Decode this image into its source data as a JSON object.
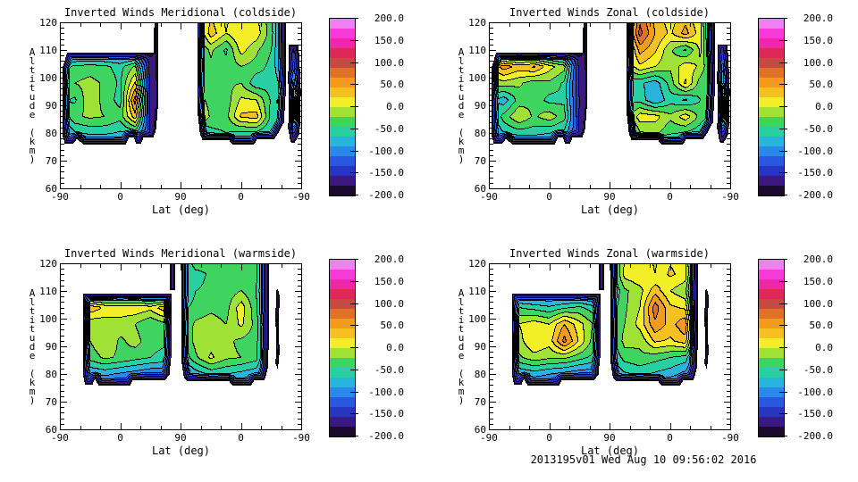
{
  "page": {
    "background": "#ffffff"
  },
  "footer": {
    "text": "2013195v01 Wed Aug 10 09:56:02 2016"
  },
  "axes": {
    "x_label": "Lat (deg)",
    "y_label": "Altitude (km)",
    "x_major_ticks": [
      {
        "u": 0.0,
        "label": "-90"
      },
      {
        "u": 0.25,
        "label": "0"
      },
      {
        "u": 0.5,
        "label": "90"
      },
      {
        "u": 0.75,
        "label": "0"
      },
      {
        "u": 1.0,
        "label": "-90"
      }
    ],
    "x_minor_divisions": 12,
    "y_major_ticks": [
      60,
      70,
      80,
      90,
      100,
      110,
      120
    ],
    "y_minor_step": 2,
    "y_range": [
      60,
      120
    ]
  },
  "colorbar": {
    "labels_top_to_bottom": [
      "200.0",
      "150.0",
      "100.0",
      "50.0",
      "0.0",
      "-50.0",
      "-100.0",
      "-150.0",
      "-200.0"
    ],
    "tick_values": [
      200,
      150,
      100,
      50,
      0,
      -50,
      -100,
      -150,
      -200
    ],
    "value_range": [
      -200,
      200
    ],
    "band_colors_low_to_high": [
      "#3A1A80",
      "#2636C0",
      "#2858E0",
      "#2B88E8",
      "#29B4DC",
      "#28CFA0",
      "#3FD45F",
      "#9FE135",
      "#F2EE28",
      "#F5C122",
      "#F39A1C",
      "#E07228",
      "#C74A40",
      "#E02858",
      "#F028A8",
      "#F73BD8"
    ],
    "clamp_low": "#1C0A2E",
    "clamp_high": "#F080F0"
  },
  "chart_data": {
    "type": "heatmap",
    "subtype": "filled-contour",
    "contour_level_step": 25,
    "value_range": [
      -200,
      200
    ],
    "x_axis": "latitude sweep -90 to 90 to -90 deg",
    "y_axis": "altitude 60 to 120 km (data present ~76-120 km)",
    "grid_u": [
      0,
      0.0625,
      0.125,
      0.1875,
      0.25,
      0.3125,
      0.375,
      0.4375,
      0.5,
      0.5625,
      0.625,
      0.6875,
      0.75,
      0.8125,
      0.875,
      0.9375,
      1.0
    ],
    "grid_alt": [
      74,
      80,
      86,
      92,
      98,
      104,
      110,
      116,
      122
    ],
    "panels": [
      {
        "id": "meridional-coldside",
        "title": "Inverted Winds Meridional (coldside)",
        "mask": "cold",
        "values": [
          [
            -150,
            -150,
            -150,
            -150,
            -150,
            -150,
            -150,
            -150,
            -150,
            -150,
            -150,
            -150,
            -150,
            -150,
            -150,
            -150,
            -150
          ],
          [
            -130,
            -80,
            -70,
            -70,
            -80,
            -70,
            -160,
            -100,
            -100,
            -110,
            -60,
            -50,
            -60,
            -60,
            -80,
            -140,
            -100
          ],
          [
            -80,
            -30,
            -20,
            -25,
            -40,
            40,
            -180,
            -90,
            -90,
            20,
            -30,
            -35,
            30,
            35,
            -60,
            -40,
            80
          ],
          [
            -40,
            -55,
            -5,
            -35,
            -60,
            90,
            -185,
            -90,
            -90,
            -10,
            -35,
            -40,
            5,
            0,
            -55,
            -40,
            60
          ],
          [
            -35,
            -25,
            -15,
            -30,
            -55,
            30,
            -185,
            -90,
            -90,
            -40,
            -35,
            -30,
            -25,
            -70,
            -60,
            -90,
            -20
          ],
          [
            -60,
            -45,
            -40,
            -45,
            -60,
            -20,
            -190,
            -95,
            -95,
            -55,
            -30,
            -40,
            -25,
            -35,
            -60,
            -120,
            -90
          ],
          [
            -150,
            -150,
            -150,
            -150,
            -150,
            -170,
            -195,
            -100,
            -100,
            -55,
            -20,
            -55,
            10,
            -20,
            -50,
            -150,
            -150
          ],
          [
            -150,
            -150,
            -150,
            -150,
            -150,
            -170,
            -195,
            -100,
            -100,
            -45,
            40,
            0,
            25,
            15,
            -40,
            -160,
            -160
          ],
          [
            -150,
            -150,
            -150,
            -150,
            -150,
            -170,
            -195,
            -100,
            -100,
            -45,
            25,
            -5,
            15,
            5,
            -45,
            -160,
            -160
          ]
        ]
      },
      {
        "id": "zonal-coldside",
        "title": "Inverted Winds Zonal (coldside)",
        "mask": "cold",
        "values": [
          [
            -150,
            -150,
            -150,
            -150,
            -150,
            -150,
            -150,
            -150,
            -150,
            -150,
            -150,
            -150,
            -150,
            -150,
            -150,
            -150,
            -150
          ],
          [
            -130,
            -75,
            -65,
            -65,
            -75,
            -85,
            -160,
            -100,
            -100,
            -110,
            -30,
            -20,
            -45,
            -55,
            -70,
            -150,
            -110
          ],
          [
            -90,
            -40,
            0,
            -30,
            -10,
            -40,
            -175,
            -90,
            -90,
            -50,
            15,
            10,
            -20,
            15,
            -35,
            -60,
            80
          ],
          [
            -60,
            -90,
            -40,
            -30,
            -60,
            -55,
            -175,
            -90,
            -90,
            -50,
            -60,
            -100,
            -60,
            -80,
            -50,
            -40,
            80
          ],
          [
            -20,
            -10,
            -20,
            -40,
            -30,
            -55,
            -180,
            -90,
            -90,
            -60,
            -70,
            -90,
            -40,
            30,
            -40,
            -60,
            -30
          ],
          [
            20,
            65,
            40,
            55,
            10,
            -15,
            -185,
            -95,
            -95,
            -30,
            20,
            0,
            -20,
            15,
            -5,
            -80,
            -60
          ],
          [
            -150,
            -150,
            -150,
            -150,
            -150,
            -170,
            -195,
            -100,
            -100,
            -40,
            60,
            30,
            -20,
            -55,
            5,
            -140,
            -140
          ],
          [
            -150,
            -150,
            -150,
            -150,
            -150,
            -170,
            -195,
            -100,
            -100,
            -20,
            110,
            50,
            20,
            60,
            10,
            -150,
            -150
          ],
          [
            -150,
            -150,
            -150,
            -150,
            -150,
            -170,
            -195,
            -100,
            -100,
            -30,
            90,
            40,
            10,
            40,
            0,
            -150,
            -150
          ]
        ]
      },
      {
        "id": "meridional-warmside",
        "title": "Inverted Winds Meridional (warmside)",
        "mask": "warm",
        "values": [
          [
            -150,
            -150,
            -150,
            -150,
            -150,
            -150,
            -150,
            -150,
            -150,
            -150,
            -150,
            -150,
            -150,
            -150,
            -150,
            -150,
            -150
          ],
          [
            -150,
            -140,
            -100,
            -95,
            -105,
            -115,
            -125,
            -120,
            -120,
            -90,
            -70,
            -75,
            -85,
            -95,
            -160,
            -150,
            -150
          ],
          [
            -150,
            -120,
            -40,
            -20,
            -30,
            -40,
            -50,
            -60,
            -80,
            -30,
            5,
            -20,
            -25,
            -40,
            -170,
            -120,
            -150
          ],
          [
            -150,
            -100,
            -25,
            0,
            -30,
            -15,
            -40,
            -45,
            -60,
            -15,
            -10,
            -20,
            -30,
            -40,
            -170,
            -100,
            -150
          ],
          [
            -150,
            -90,
            -20,
            -15,
            -10,
            -25,
            -50,
            -30,
            -50,
            -20,
            -15,
            -25,
            5,
            -35,
            -170,
            -100,
            -150
          ],
          [
            -150,
            -60,
            45,
            20,
            15,
            20,
            10,
            45,
            -60,
            -40,
            -30,
            -35,
            15,
            -45,
            -180,
            -120,
            -150
          ],
          [
            -150,
            -150,
            -150,
            -150,
            -150,
            -150,
            -150,
            -180,
            -90,
            -50,
            -45,
            -40,
            -25,
            -50,
            -180,
            -140,
            -150
          ],
          [
            -150,
            -150,
            -150,
            -150,
            -150,
            -150,
            -150,
            -180,
            -90,
            -60,
            -45,
            -35,
            -40,
            -45,
            -180,
            -150,
            -150
          ],
          [
            -150,
            -150,
            -150,
            -150,
            -150,
            -150,
            -150,
            -180,
            -90,
            -20,
            -40,
            -30,
            -35,
            -40,
            -180,
            -150,
            -150
          ]
        ]
      },
      {
        "id": "zonal-warmside",
        "title": "Inverted Winds Zonal (warmside)",
        "mask": "warm",
        "values": [
          [
            -150,
            -150,
            -150,
            -150,
            -150,
            -150,
            -150,
            -150,
            -150,
            -150,
            -150,
            -150,
            -150,
            -150,
            -150,
            -150,
            -150
          ],
          [
            -150,
            -140,
            -100,
            -90,
            -100,
            -110,
            -120,
            -120,
            -110,
            -80,
            -70,
            -80,
            -90,
            -110,
            -160,
            -150,
            -150
          ],
          [
            -150,
            -110,
            -30,
            -10,
            -20,
            -20,
            -40,
            -60,
            -80,
            -40,
            -30,
            -40,
            -50,
            -60,
            -170,
            -130,
            -150
          ],
          [
            -150,
            -90,
            -10,
            25,
            10,
            85,
            20,
            -40,
            -70,
            -15,
            -20,
            30,
            20,
            40,
            -170,
            -110,
            -150
          ],
          [
            -150,
            -80,
            0,
            15,
            0,
            50,
            10,
            -30,
            -60,
            -25,
            10,
            70,
            40,
            70,
            -170,
            -100,
            -150
          ],
          [
            -150,
            -70,
            -50,
            -60,
            -70,
            -55,
            -45,
            -65,
            -70,
            -30,
            0,
            90,
            30,
            20,
            -180,
            -110,
            -150
          ],
          [
            -150,
            -150,
            -150,
            -150,
            -150,
            -150,
            -150,
            -180,
            -90,
            -30,
            -10,
            40,
            0,
            -20,
            -180,
            -140,
            -150
          ],
          [
            -150,
            -150,
            -150,
            -150,
            -150,
            -150,
            -150,
            -180,
            -90,
            10,
            25,
            0,
            30,
            15,
            -180,
            -150,
            -150
          ],
          [
            -150,
            -150,
            -150,
            -150,
            -150,
            -150,
            -150,
            -180,
            -90,
            0,
            15,
            -5,
            20,
            10,
            -180,
            -150,
            -150
          ]
        ]
      }
    ],
    "masks": {
      "cold": [
        [
          [
            0.012,
            79
          ],
          [
            0.02,
            76.5
          ],
          [
            0.055,
            76.5
          ],
          [
            0.07,
            78
          ],
          [
            0.1,
            76
          ],
          [
            0.27,
            76
          ],
          [
            0.285,
            78.5
          ],
          [
            0.305,
            78.5
          ],
          [
            0.315,
            76.5
          ],
          [
            0.335,
            76.5
          ],
          [
            0.345,
            78.5
          ],
          [
            0.385,
            78.5
          ],
          [
            0.396,
            81
          ],
          [
            0.404,
            88
          ],
          [
            0.406,
            123
          ],
          [
            0.39,
            123
          ],
          [
            0.388,
            109
          ],
          [
            0.03,
            109
          ],
          [
            0.012,
            104
          ]
        ],
        [
          [
            0.568,
            123
          ],
          [
            0.568,
            88
          ],
          [
            0.578,
            80
          ],
          [
            0.59,
            77.5
          ],
          [
            0.7,
            77.5
          ],
          [
            0.712,
            76
          ],
          [
            0.8,
            76
          ],
          [
            0.815,
            78
          ],
          [
            0.885,
            78
          ],
          [
            0.9,
            80
          ],
          [
            0.925,
            84
          ],
          [
            0.933,
            95
          ],
          [
            0.933,
            123
          ]
        ],
        [
          [
            0.946,
            112
          ],
          [
            0.942,
            100
          ],
          [
            0.946,
            90
          ],
          [
            0.942,
            82
          ],
          [
            0.952,
            77
          ],
          [
            0.968,
            76.5
          ],
          [
            0.99,
            80
          ],
          [
            0.995,
            95
          ],
          [
            0.99,
            105
          ],
          [
            0.985,
            112
          ]
        ]
      ],
      "warm": [
        [
          [
            0.095,
            109
          ],
          [
            0.095,
            80
          ],
          [
            0.103,
            76.5
          ],
          [
            0.135,
            76.5
          ],
          [
            0.145,
            78.5
          ],
          [
            0.16,
            76
          ],
          [
            0.29,
            76
          ],
          [
            0.3,
            78
          ],
          [
            0.435,
            78
          ],
          [
            0.452,
            80
          ],
          [
            0.462,
            88
          ],
          [
            0.462,
            109
          ]
        ],
        [
          [
            0.455,
            110.5
          ],
          [
            0.475,
            110.5
          ],
          [
            0.475,
            123
          ],
          [
            0.455,
            123
          ]
        ],
        [
          [
            0.503,
            123
          ],
          [
            0.503,
            84
          ],
          [
            0.512,
            79
          ],
          [
            0.527,
            77.5
          ],
          [
            0.7,
            77.5
          ],
          [
            0.712,
            76
          ],
          [
            0.79,
            76
          ],
          [
            0.802,
            78
          ],
          [
            0.845,
            78
          ],
          [
            0.858,
            82
          ],
          [
            0.865,
            95
          ],
          [
            0.865,
            123
          ]
        ],
        [
          [
            0.893,
            110
          ],
          [
            0.89,
            100
          ],
          [
            0.894,
            90
          ],
          [
            0.89,
            84
          ],
          [
            0.9,
            82
          ],
          [
            0.907,
            88
          ],
          [
            0.903,
            98
          ],
          [
            0.908,
            108
          ],
          [
            0.9,
            111
          ]
        ]
      ]
    }
  }
}
